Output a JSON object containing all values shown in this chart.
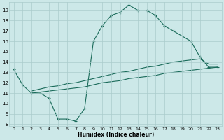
{
  "xlabel": "Humidex (Indice chaleur)",
  "xlim": [
    -0.5,
    23.5
  ],
  "ylim": [
    7.8,
    19.8
  ],
  "yticks": [
    8,
    9,
    10,
    11,
    12,
    13,
    14,
    15,
    16,
    17,
    18,
    19
  ],
  "xticks": [
    0,
    1,
    2,
    3,
    4,
    5,
    6,
    7,
    8,
    9,
    10,
    11,
    12,
    13,
    14,
    15,
    16,
    17,
    18,
    19,
    20,
    21,
    22,
    23
  ],
  "bg_color": "#cce8e8",
  "grid_color": "#aacccc",
  "line_color": "#1a6b5a",
  "line1_x": [
    0,
    1,
    2,
    3,
    4,
    5,
    6,
    7,
    8,
    9,
    10,
    11,
    12,
    13,
    14,
    15,
    16,
    17,
    18,
    20,
    21,
    22,
    23
  ],
  "line1_y": [
    13.3,
    11.8,
    11.0,
    11.0,
    10.5,
    8.5,
    8.5,
    8.3,
    9.5,
    16.0,
    17.5,
    18.5,
    18.8,
    19.5,
    19.0,
    19.0,
    18.5,
    17.5,
    17.0,
    16.0,
    14.5,
    13.5,
    13.5
  ],
  "line2_x": [
    2,
    3,
    4,
    5,
    6,
    7,
    8,
    9,
    10,
    11,
    12,
    13,
    14,
    15,
    16,
    17,
    18,
    19,
    20,
    21,
    22,
    23
  ],
  "line2_y": [
    11.0,
    11.1,
    11.2,
    11.3,
    11.4,
    11.5,
    11.6,
    11.8,
    12.0,
    12.1,
    12.2,
    12.4,
    12.5,
    12.6,
    12.7,
    12.9,
    13.0,
    13.1,
    13.2,
    13.3,
    13.4,
    13.5
  ],
  "line3_x": [
    2,
    3,
    4,
    5,
    6,
    7,
    8,
    9,
    10,
    11,
    12,
    13,
    14,
    15,
    16,
    17,
    18,
    19,
    20,
    21,
    22,
    23
  ],
  "line3_y": [
    11.2,
    11.4,
    11.6,
    11.7,
    11.9,
    12.0,
    12.2,
    12.4,
    12.6,
    12.8,
    13.0,
    13.1,
    13.3,
    13.5,
    13.6,
    13.8,
    14.0,
    14.1,
    14.2,
    14.3,
    13.8,
    13.8
  ],
  "figsize": [
    3.2,
    2.0
  ],
  "dpi": 100
}
